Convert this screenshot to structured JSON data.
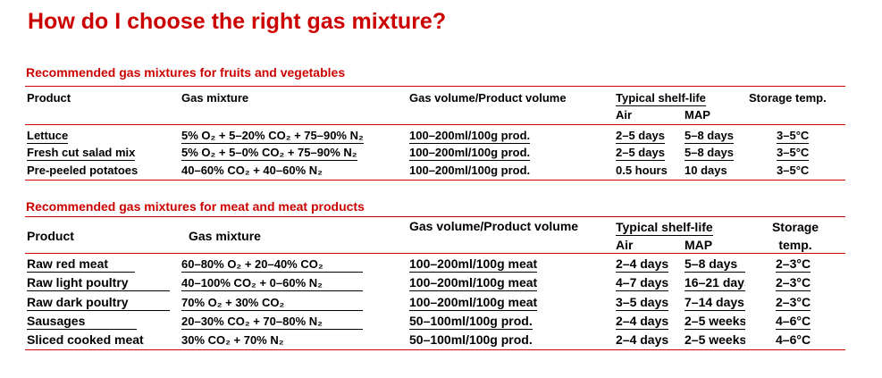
{
  "title": "How do I choose the right gas mixture?",
  "section1": {
    "heading": "Recommended gas mixtures for fruits and vegetables",
    "headers": {
      "product": "Product",
      "mixture": "Gas mixture",
      "volume": "Gas volume/Product volume",
      "shelf": "Typical shelf-life",
      "air": "Air",
      "map": "MAP",
      "storage": "Storage temp."
    },
    "rows": [
      {
        "product": "Lettuce",
        "mixture": "5% O₂  + 5–20% CO₂  + 75–90% N₂",
        "volume": "100–200ml/100g prod.",
        "air": "2–5 days",
        "map": "5–8 days",
        "temp": "3–5°C"
      },
      {
        "product": "Fresh cut salad mix",
        "mixture": "5% O₂  + 5–0% CO₂  + 75–90% N₂",
        "volume": "100–200ml/100g prod.",
        "air": "2–5 days",
        "map": "5–8 days",
        "temp": "3–5°C"
      },
      {
        "product": "Pre-peeled potatoes",
        "mixture": "40–60% CO₂  + 40–60% N₂",
        "volume": "100–200ml/100g prod.",
        "air": "0.5 hours",
        "map": "10 days",
        "temp": "3–5°C"
      }
    ]
  },
  "section2": {
    "heading": "Recommended gas mixtures for meat and meat products",
    "headers": {
      "product": "Product",
      "mixture": "Gas mixture",
      "volume": "Gas volume/Product volume",
      "shelf": "Typical shelf-life",
      "air": "Air",
      "map": "MAP",
      "storage1": "Storage",
      "storage2": "temp."
    },
    "rows": [
      {
        "product": "Raw red meat",
        "mixture": "60–80% O₂  + 20–40% CO₂",
        "volume": "100–200ml/100g meat",
        "air": "2–4 days",
        "map": "5–8 days",
        "temp": "2–3°C"
      },
      {
        "product": "Raw light poultry",
        "mixture": "40–100% CO₂  + 0–60% N₂",
        "volume": "100–200ml/100g meat",
        "air": "4–7 days",
        "map": "16–21 days",
        "temp": "2–3°C"
      },
      {
        "product": "Raw dark poultry",
        "mixture": "70% O₂  + 30% CO₂",
        "volume": "100–200ml/100g meat",
        "air": "3–5 days",
        "map": "7–14 days",
        "temp": "2–3°C"
      },
      {
        "product": "Sausages",
        "mixture": "20–30% CO₂  + 70–80% N₂",
        "volume": "50–100ml/100g prod.",
        "air": "2–4 days",
        "map": "2–5 weeks",
        "temp": "4–6°C"
      },
      {
        "product": "Sliced cooked meat",
        "mixture": "30% CO₂  + 70% N₂",
        "volume": "50–100ml/100g prod.",
        "air": "2–4 days",
        "map": "2–5 weeks",
        "temp": "4–6°C"
      }
    ]
  }
}
